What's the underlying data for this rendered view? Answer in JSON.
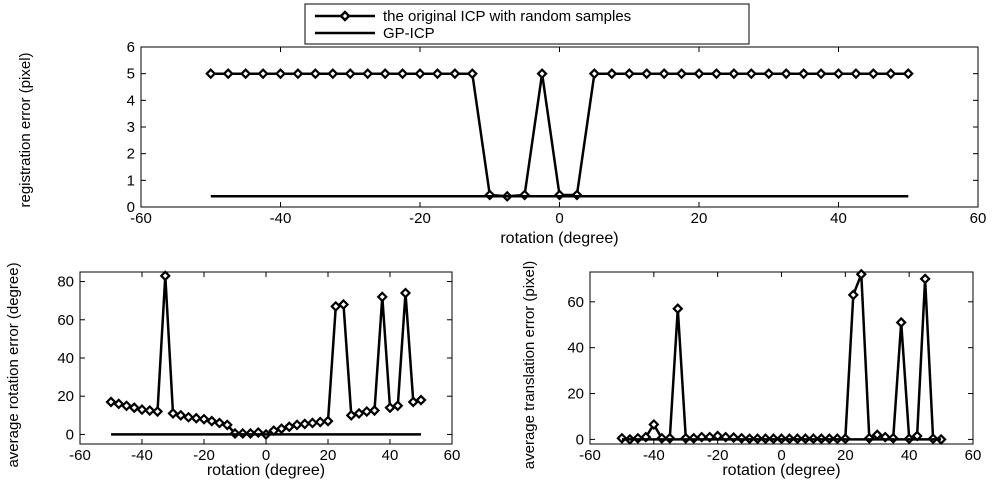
{
  "legend": {
    "entries": [
      {
        "label": "the original ICP with random samples",
        "marker": "diamond"
      },
      {
        "label": "GP-ICP",
        "marker": "none"
      }
    ],
    "placement": "top-center"
  },
  "chart_data": [
    {
      "type": "line",
      "xlabel": "rotation (degree)",
      "ylabel": "registration error (pixel)",
      "xlim": [
        -60,
        60
      ],
      "ylim": [
        0,
        6
      ],
      "xticks": [
        -60,
        -40,
        -20,
        0,
        20,
        40,
        60
      ],
      "yticks": [
        0,
        1,
        2,
        3,
        4,
        5,
        6
      ],
      "series": [
        {
          "name": "the original ICP with random samples",
          "marker": "diamond",
          "x": [
            -50,
            -47.5,
            -45,
            -42.5,
            -40,
            -37.5,
            -35,
            -32.5,
            -30,
            -27.5,
            -25,
            -22.5,
            -20,
            -17.5,
            -15,
            -12.5,
            -10,
            -7.5,
            -5,
            -2.5,
            0,
            2.5,
            5,
            7.5,
            10,
            12.5,
            15,
            17.5,
            20,
            22.5,
            25,
            27.5,
            30,
            32.5,
            35,
            37.5,
            40,
            42.5,
            45,
            47.5,
            50
          ],
          "y": [
            5,
            5,
            5,
            5,
            5,
            5,
            5,
            5,
            5,
            5,
            5,
            5,
            5,
            5,
            5,
            5,
            0.45,
            0.4,
            0.45,
            5,
            0.45,
            0.45,
            5,
            5,
            5,
            5,
            5,
            5,
            5,
            5,
            5,
            5,
            5,
            5,
            5,
            5,
            5,
            5,
            5,
            5,
            5
          ]
        },
        {
          "name": "GP-ICP",
          "marker": "none",
          "x": [
            -50,
            50
          ],
          "y": [
            0.4,
            0.4
          ]
        }
      ]
    },
    {
      "type": "line",
      "xlabel": "rotation (degree)",
      "ylabel": "average rotation error (degree)",
      "xlim": [
        -60,
        60
      ],
      "ylim": [
        -5,
        85
      ],
      "xticks": [
        -60,
        -40,
        -20,
        0,
        20,
        40,
        60
      ],
      "yticks": [
        0,
        20,
        40,
        60,
        80
      ],
      "series": [
        {
          "name": "the original ICP with random samples",
          "marker": "diamond",
          "x": [
            -50,
            -47.5,
            -45,
            -42.5,
            -40,
            -37.5,
            -35,
            -32.5,
            -30,
            -27.5,
            -25,
            -22.5,
            -20,
            -17.5,
            -15,
            -12.5,
            -10,
            -7.5,
            -5,
            -2.5,
            0,
            2.5,
            5,
            7.5,
            10,
            12.5,
            15,
            17.5,
            20,
            22.5,
            25,
            27.5,
            30,
            32.5,
            35,
            37.5,
            40,
            42.5,
            45,
            47.5,
            50
          ],
          "y": [
            17,
            16,
            15,
            14,
            13,
            12.5,
            12,
            83,
            11,
            10,
            9,
            8.5,
            8,
            7,
            6,
            5,
            0.5,
            0.5,
            0.5,
            1,
            0,
            2,
            3,
            4,
            5,
            5.5,
            6,
            6.5,
            7,
            67,
            68,
            10,
            11,
            12,
            12.5,
            72,
            14,
            15,
            74,
            17,
            18
          ]
        },
        {
          "name": "GP-ICP",
          "marker": "none",
          "x": [
            -50,
            50
          ],
          "y": [
            0,
            0
          ]
        }
      ]
    },
    {
      "type": "line",
      "xlabel": "rotation (degree)",
      "ylabel": "average translation error (pixel)",
      "xlim": [
        -60,
        60
      ],
      "ylim": [
        -2,
        73
      ],
      "xticks": [
        -60,
        -40,
        -20,
        0,
        20,
        40,
        60
      ],
      "yticks": [
        0,
        20,
        40,
        60
      ],
      "series": [
        {
          "name": "the original ICP with random samples",
          "marker": "diamond",
          "x": [
            -50,
            -47.5,
            -45,
            -42.5,
            -40,
            -37.5,
            -35,
            -32.5,
            -30,
            -27.5,
            -25,
            -22.5,
            -20,
            -17.5,
            -15,
            -12.5,
            -10,
            -7.5,
            -5,
            -2.5,
            0,
            2.5,
            5,
            7.5,
            10,
            12.5,
            15,
            17.5,
            20,
            22.5,
            25,
            27.5,
            30,
            32.5,
            35,
            37.5,
            40,
            42.5,
            45,
            47.5,
            50
          ],
          "y": [
            0.5,
            0,
            0.5,
            1,
            6.5,
            0.5,
            0.5,
            57,
            0.5,
            0.5,
            1,
            1,
            1.5,
            1,
            0.8,
            0.5,
            0.3,
            0.3,
            0.3,
            0.3,
            0.3,
            0.3,
            0.3,
            0.3,
            0.3,
            0.3,
            0.3,
            0.3,
            0.3,
            63,
            72,
            0.5,
            2,
            1,
            0.5,
            51,
            0.3,
            1.5,
            70,
            0.3,
            0
          ]
        },
        {
          "name": "GP-ICP",
          "marker": "none",
          "x": [
            -50,
            50
          ],
          "y": [
            0,
            0
          ]
        }
      ]
    }
  ]
}
